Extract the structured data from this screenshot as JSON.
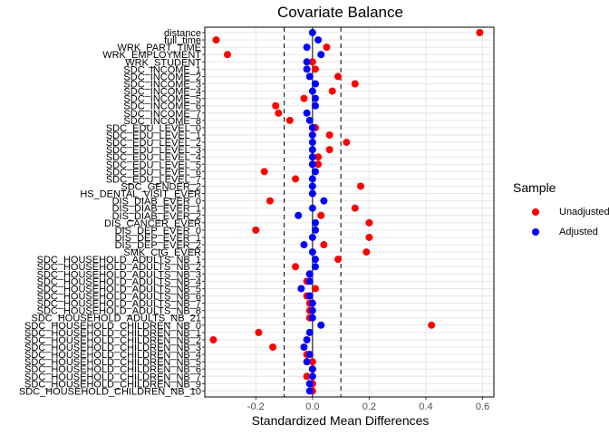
{
  "chart_data": {
    "type": "scatter",
    "title": "Covariate Balance",
    "xlabel": "Standardized Mean Differences",
    "ylabel": "",
    "xlim": [
      -0.38,
      0.64
    ],
    "xticks": [
      -0.2,
      0.0,
      0.2,
      0.4,
      0.6
    ],
    "xtick_labels": [
      "-0.2",
      "0.0",
      "0.2",
      "0.4",
      "0.6"
    ],
    "threshold_lines": [
      -0.1,
      0.1
    ],
    "zero_line": 0,
    "grid": true,
    "legend_position": "right",
    "legend_title": "Sample",
    "categories": [
      "distance",
      "full_time",
      "WRK_PART_TIME",
      "WRK_EMPLOYMENT",
      "WRK_STUDENT",
      "SDC_INCOME_1",
      "SDC_INCOME_2",
      "SDC_INCOME_3",
      "SDC_INCOME_4",
      "SDC_INCOME_5",
      "SDC_INCOME_6",
      "SDC_INCOME_7",
      "SDC_INCOME_8",
      "SDC_EDU_LEVEL_0",
      "SDC_EDU_LEVEL_1",
      "SDC_EDU_LEVEL_2",
      "SDC_EDU_LEVEL_3",
      "SDC_EDU_LEVEL_4",
      "SDC_EDU_LEVEL_5",
      "SDC_EDU_LEVEL_6",
      "SDC_EDU_LEVEL_7",
      "SDC_GENDER_2",
      "HS_DENTAL_VISIT_EVER",
      "DIS_DIAB_EVER_0",
      "DIS_DIAB_EVER_1",
      "DIS_DIAB_EVER_2",
      "DIS_CANCER_EVER",
      "DIS_DEP_EVER_0",
      "DIS_DEP_EVER_1",
      "DIS_DEP_EVER_2",
      "SMK_CIG_EVER",
      "SDC_HOUSEHOLD_ADULTS_NB_1",
      "SDC_HOUSEHOLD_ADULTS_NB_2",
      "SDC_HOUSEHOLD_ADULTS_NB_3",
      "SDC_HOUSEHOLD_ADULTS_NB_4",
      "SDC_HOUSEHOLD_ADULTS_NB_5",
      "SDC_HOUSEHOLD_ADULTS_NB_6",
      "SDC_HOUSEHOLD_ADULTS_NB_7",
      "SDC_HOUSEHOLD_ADULTS_NB_8",
      "SDC_HOUSEHOLD_ADULTS_NB_21",
      "SDC_HOUSEHOLD_CHILDREN_NB_0",
      "SDC_HOUSEHOLD_CHILDREN_NB_1",
      "SDC_HOUSEHOLD_CHILDREN_NB_2",
      "SDC_HOUSEHOLD_CHILDREN_NB_3",
      "SDC_HOUSEHOLD_CHILDREN_NB_4",
      "SDC_HOUSEHOLD_CHILDREN_NB_5",
      "SDC_HOUSEHOLD_CHILDREN_NB_6",
      "SDC_HOUSEHOLD_CHILDREN_NB_7",
      "SDC_HOUSEHOLD_CHILDREN_NB_9",
      "SDC_HOUSEHOLD_CHILDREN_NB_10"
    ],
    "series": [
      {
        "name": "Unadjusted",
        "color": "#ff0000",
        "values": [
          0.59,
          -0.34,
          0.05,
          -0.3,
          0.0,
          0.01,
          0.09,
          0.15,
          0.07,
          -0.03,
          -0.13,
          -0.12,
          -0.08,
          0.01,
          0.06,
          0.12,
          0.06,
          0.02,
          0.02,
          -0.17,
          -0.06,
          0.17,
          0.0,
          -0.15,
          0.15,
          0.03,
          0.2,
          -0.2,
          0.2,
          0.04,
          0.19,
          0.09,
          -0.06,
          -0.01,
          -0.02,
          0.01,
          -0.02,
          -0.01,
          -0.01,
          -0.01,
          0.42,
          -0.19,
          -0.35,
          -0.14,
          -0.02,
          0.0,
          0.0,
          -0.02,
          0.0,
          0.0
        ]
      },
      {
        "name": "Adjusted",
        "color": "#0000ff",
        "values": [
          0.0,
          0.02,
          -0.02,
          0.03,
          -0.02,
          -0.02,
          -0.01,
          0.01,
          0.0,
          0.01,
          0.01,
          -0.02,
          -0.01,
          0.0,
          0.0,
          0.0,
          0.0,
          0.0,
          0.0,
          0.01,
          0.0,
          0.0,
          0.0,
          0.04,
          0.0,
          -0.05,
          0.01,
          0.01,
          0.0,
          -0.03,
          0.0,
          0.01,
          0.01,
          -0.01,
          -0.01,
          -0.04,
          -0.01,
          0.0,
          0.0,
          0.0,
          0.03,
          -0.01,
          -0.02,
          -0.03,
          -0.01,
          -0.02,
          0.0,
          0.0,
          -0.01,
          -0.01
        ]
      }
    ]
  }
}
